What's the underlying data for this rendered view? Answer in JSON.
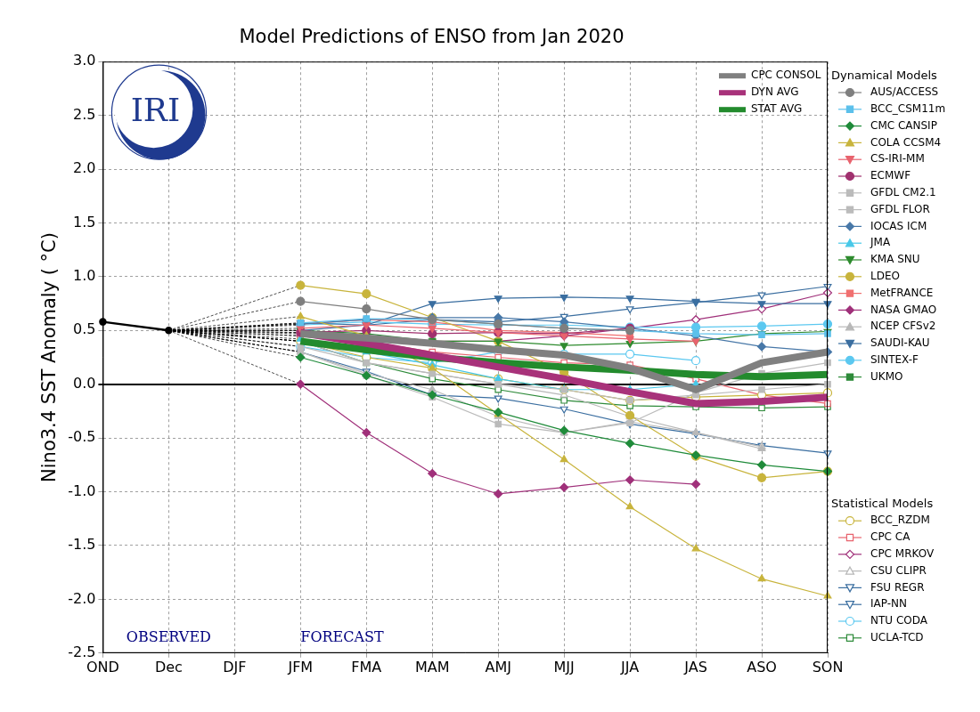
{
  "chart_data": {
    "type": "line",
    "title": "Model Predictions of ENSO from Jan 2020",
    "y_label": "Nino3.4 SST Anomaly ( °C)",
    "categories": [
      "OND",
      "Dec",
      "DJF",
      "JFM",
      "FMA",
      "MAM",
      "AMJ",
      "MJJ",
      "JJA",
      "JAS",
      "ASO",
      "SON"
    ],
    "ylim": [
      -2.5,
      3.0
    ],
    "yticks": [
      -2.5,
      {
        "value": -2,
        "label": "-2.0"
      },
      -1.5,
      {
        "value": -1,
        "label": "-1.0"
      },
      -0.5,
      {
        "value": 0,
        "label": "0.0"
      },
      0.5,
      {
        "value": 1,
        "label": "1.0"
      },
      1.5,
      {
        "value": 2,
        "label": "2.0"
      },
      2.5,
      {
        "value": 3,
        "label": "3.0"
      }
    ],
    "grid": true,
    "logo": "IRI",
    "annotations": [
      "OBSERVED",
      "FORECAST"
    ],
    "observed": {
      "color": "#000000",
      "marker": "circle",
      "values": [
        0.58,
        0.5,
        null,
        null,
        null,
        null,
        null,
        null,
        null,
        null,
        null,
        null
      ]
    },
    "series": [
      {
        "name": "CPC CONSOL",
        "color": "#808080",
        "line_style": "thick",
        "marker": "none",
        "values": [
          null,
          null,
          null,
          0.47,
          0.43,
          0.38,
          0.32,
          0.27,
          0.15,
          -0.05,
          0.2,
          0.3
        ]
      },
      {
        "name": "DYN AVG",
        "color": "#a8327a",
        "line_style": "thick",
        "marker": "none",
        "values": [
          null,
          null,
          null,
          0.48,
          0.38,
          0.27,
          0.16,
          0.05,
          -0.07,
          -0.18,
          -0.16,
          -0.12
        ]
      },
      {
        "name": "STAT AVG",
        "color": "#238b2d",
        "line_style": "thick",
        "marker": "none",
        "values": [
          null,
          null,
          null,
          0.4,
          0.32,
          0.25,
          0.2,
          0.16,
          0.13,
          0.09,
          0.07,
          0.09
        ]
      }
    ],
    "series_groups": [
      {
        "title": "Dynamical Models",
        "series": [
          {
            "name": "AUS/ACCESS",
            "color": "#7f7f7f",
            "marker": "circle",
            "values": [
              null,
              null,
              null,
              0.77,
              0.7,
              0.6,
              0.56,
              0.52,
              0.5,
              null,
              null,
              null
            ]
          },
          {
            "name": "BCC_CSM11m",
            "color": "#5bc0eb",
            "marker": "square",
            "values": [
              null,
              null,
              null,
              0.57,
              0.61,
              0.6,
              0.56,
              0.52,
              0.5,
              0.47,
              0.46,
              0.47
            ]
          },
          {
            "name": "CMC CANSIP",
            "color": "#1f8b3a",
            "marker": "diamond",
            "values": [
              null,
              null,
              null,
              0.25,
              0.08,
              -0.1,
              -0.26,
              -0.43,
              -0.55,
              -0.66,
              -0.75,
              -0.81
            ]
          },
          {
            "name": "COLA CCSM4",
            "color": "#c8b43c",
            "marker": "triangle-up",
            "values": [
              null,
              null,
              null,
              0.63,
              0.45,
              0.15,
              -0.28,
              -0.7,
              -1.14,
              -1.53,
              -1.81,
              -1.97
            ]
          },
          {
            "name": "CS-IRI-MM",
            "color": "#e8636e",
            "marker": "triangle-down",
            "values": [
              null,
              null,
              null,
              0.52,
              0.55,
              0.52,
              0.48,
              0.45,
              0.42,
              0.4,
              null,
              null
            ]
          },
          {
            "name": "ECMWF",
            "color": "#a0306e",
            "marker": "circle",
            "values": [
              null,
              null,
              null,
              0.48,
              0.5,
              0.47,
              0.48,
              0.47,
              0.52,
              null,
              null,
              null
            ]
          },
          {
            "name": "GFDL CM2.1",
            "color": "#bbbbbb",
            "marker": "square",
            "values": [
              null,
              null,
              null,
              0.3,
              0.08,
              -0.12,
              -0.37,
              -0.45,
              -0.36,
              -0.08,
              0.1,
              0.2
            ]
          },
          {
            "name": "GFDL FLOR",
            "color": "#bbbbbb",
            "marker": "square",
            "values": [
              null,
              null,
              null,
              0.35,
              0.2,
              0.1,
              0.0,
              -0.05,
              -0.15,
              -0.1,
              -0.05,
              0.0
            ]
          },
          {
            "name": "IOCAS ICM",
            "color": "#4878a8",
            "marker": "diamond",
            "values": [
              null,
              null,
              null,
              0.56,
              0.6,
              0.62,
              0.62,
              0.58,
              0.52,
              0.45,
              0.35,
              0.3
            ]
          },
          {
            "name": "JMA",
            "color": "#48c8e8",
            "marker": "triangle-up",
            "values": [
              null,
              null,
              null,
              0.42,
              0.3,
              0.18,
              0.05,
              -0.05,
              -0.05,
              0.0,
              null,
              null
            ]
          },
          {
            "name": "KMA SNU",
            "color": "#2e8b2e",
            "marker": "triangle-down",
            "values": [
              null,
              null,
              null,
              0.5,
              0.45,
              0.4,
              0.4,
              0.36,
              0.38,
              0.4,
              0.47,
              0.49
            ]
          },
          {
            "name": "LDEO",
            "color": "#c8b43c",
            "marker": "circle",
            "values": [
              null,
              null,
              null,
              0.92,
              0.84,
              0.62,
              0.4,
              0.11,
              -0.29,
              -0.67,
              -0.87,
              -0.81
            ]
          },
          {
            "name": "MetFRANCE",
            "color": "#f07070",
            "marker": "square",
            "values": [
              null,
              null,
              null,
              0.56,
              0.6,
              0.58,
              0.5,
              0.48,
              0.45,
              null,
              null,
              null
            ]
          },
          {
            "name": "NASA GMAO",
            "color": "#a0307a",
            "marker": "diamond",
            "values": [
              null,
              null,
              null,
              0.0,
              -0.45,
              -0.83,
              -1.02,
              -0.96,
              -0.89,
              -0.93,
              null,
              null
            ]
          },
          {
            "name": "NCEP CFSv2",
            "color": "#b8b8b8",
            "marker": "triangle-up",
            "values": [
              null,
              null,
              null,
              0.3,
              0.1,
              -0.05,
              -0.3,
              -0.45,
              -0.35,
              -0.45,
              -0.6,
              null
            ]
          },
          {
            "name": "SAUDI-KAU",
            "color": "#3a6ea0",
            "marker": "triangle-down",
            "values": [
              null,
              null,
              null,
              0.57,
              0.55,
              0.75,
              0.8,
              0.81,
              0.8,
              0.77,
              0.75,
              0.75
            ]
          },
          {
            "name": "SINTEX-F",
            "color": "#5bc8f0",
            "marker": "circle",
            "values": [
              null,
              null,
              null,
              0.55,
              0.58,
              0.56,
              0.55,
              0.55,
              0.53,
              0.53,
              0.54,
              0.56
            ]
          },
          {
            "name": "UKMO",
            "color": "#2e8b3a",
            "marker": "square",
            "values": [
              null,
              null,
              null,
              0.5,
              0.47,
              0.4,
              0.33,
              null,
              null,
              null,
              null,
              null
            ]
          }
        ]
      },
      {
        "title": "Statistical Models",
        "series": [
          {
            "name": "BCC_RZDM",
            "color": "#c8b43c",
            "marker": "circle-open",
            "values": [
              null,
              null,
              null,
              0.4,
              0.25,
              0.15,
              0.05,
              -0.05,
              -0.15,
              -0.12,
              -0.1,
              -0.08
            ]
          },
          {
            "name": "CPC CA",
            "color": "#e8636e",
            "marker": "square-open",
            "values": [
              null,
              null,
              null,
              0.45,
              0.4,
              0.3,
              0.25,
              0.2,
              0.18,
              0.05,
              -0.1,
              -0.18
            ]
          },
          {
            "name": "CPC MRKOV",
            "color": "#a0307a",
            "marker": "diamond-open",
            "values": [
              null,
              null,
              null,
              0.45,
              0.42,
              0.4,
              0.4,
              0.45,
              0.52,
              0.6,
              0.7,
              0.85
            ]
          },
          {
            "name": "CSU CLIPR",
            "color": "#b8b8b8",
            "marker": "triangle-up-open",
            "values": [
              null,
              null,
              null,
              0.4,
              0.2,
              0.1,
              0.0,
              -0.1,
              -0.3,
              -0.45,
              -0.58,
              null
            ]
          },
          {
            "name": "FSU REGR",
            "color": "#3a6ea0",
            "marker": "triangle-down-open",
            "values": [
              null,
              null,
              null,
              0.3,
              0.12,
              -0.1,
              -0.13,
              -0.23,
              -0.37,
              -0.46,
              -0.57,
              -0.64
            ]
          },
          {
            "name": "IAP-NN",
            "color": "#3a6ea0",
            "marker": "triangle-down-open",
            "values": [
              null,
              null,
              null,
              0.5,
              0.55,
              0.6,
              0.58,
              0.63,
              0.7,
              0.76,
              0.83,
              0.91
            ]
          },
          {
            "name": "NTU CODA",
            "color": "#5bc8f0",
            "marker": "circle-open",
            "values": [
              null,
              null,
              null,
              0.35,
              0.25,
              0.2,
              0.3,
              0.28,
              0.28,
              0.22,
              null,
              null
            ]
          },
          {
            "name": "UCLA-TCD",
            "color": "#2e8b3a",
            "marker": "square-open",
            "values": [
              null,
              null,
              null,
              0.4,
              0.2,
              0.05,
              -0.05,
              -0.15,
              -0.2,
              -0.21,
              -0.22,
              -0.21
            ]
          }
        ]
      }
    ]
  }
}
